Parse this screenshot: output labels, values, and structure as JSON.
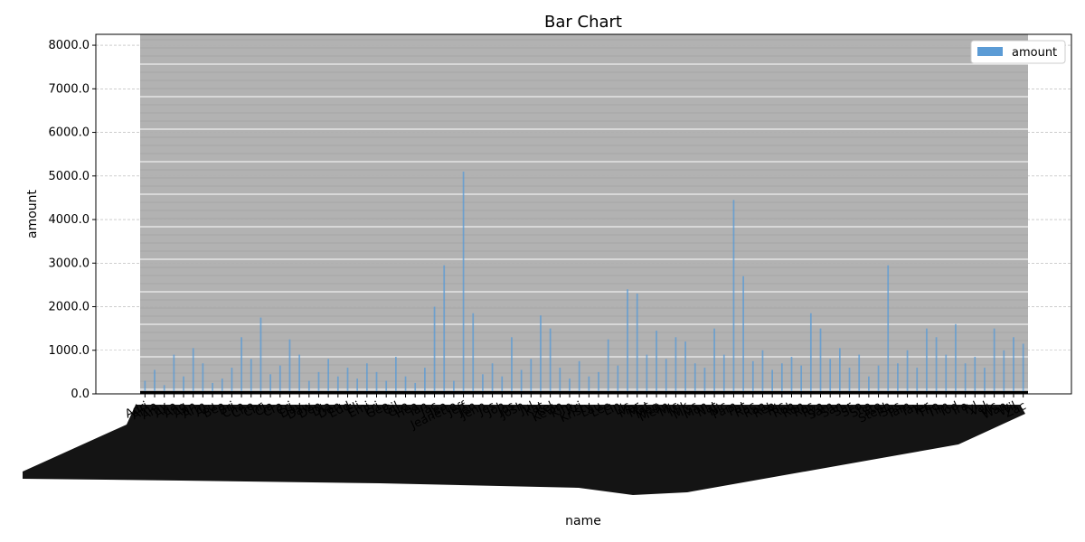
{
  "chart_data": {
    "type": "bar",
    "title": "Bar Chart",
    "xlabel": "name",
    "ylabel": "amount",
    "ylim": [
      0,
      8250
    ],
    "yticks": [
      0,
      1000,
      2000,
      3000,
      4000,
      5000,
      6000,
      7000,
      8000
    ],
    "ytick_labels": [
      "0.0",
      "1000.0",
      "2000.0",
      "3000.0",
      "4000.0",
      "5000.0",
      "6000.0",
      "7000.0",
      "8000.0"
    ],
    "grid": true,
    "legend": {
      "placement": "top-right",
      "entries": [
        "amount"
      ]
    },
    "series": [
      {
        "name": "amount",
        "color": "#5b9bd5"
      }
    ],
    "categories": [
      "Adri",
      "Ama",
      "Amy",
      "Ana",
      "Ang",
      "Ann",
      "Arm",
      "Aru",
      "Bea",
      "Bri",
      "Cha",
      "Che",
      "Chr",
      "Cla",
      "Cra",
      "Cri",
      "Dav",
      "Daw",
      "Den",
      "Dia",
      "Don",
      "Edd",
      "Eli",
      "Emi",
      "Eri",
      "Geo",
      "Gil",
      "Gre",
      "Hea",
      "Ian",
      "Jac",
      "Jea",
      "Jeanette",
      "Jeff",
      "Jen",
      "Jenn",
      "Jes",
      "Joh",
      "Jos",
      "Josh",
      "Jul",
      "Kat",
      "Kel",
      "Kevin",
      "Kim",
      "Kri",
      "Kristy",
      "Lau",
      "Lee",
      "Lin",
      "Lis",
      "Mar",
      "Mat",
      "Meg",
      "Melin",
      "Mic",
      "Mik",
      "Miss",
      "Mon",
      "Nat",
      "Nic",
      "Pam",
      "Pat",
      "Rac",
      "Ran",
      "Reb",
      "Ric",
      "Rob",
      "Ron",
      "Ros",
      "Rya",
      "Sam",
      "San",
      "Sar",
      "Sco",
      "Sha",
      "Ste",
      "Steph",
      "Sus",
      "Tam",
      "Tay",
      "Ter",
      "Tho",
      "Tim",
      "Tod",
      "Tra",
      "Tyl",
      "Val",
      "Vic",
      "Wan",
      "Wil",
      "Zac"
    ],
    "values": [
      300,
      550,
      200,
      900,
      400,
      1050,
      700,
      250,
      350,
      600,
      1300,
      800,
      1750,
      450,
      650,
      1250,
      900,
      300,
      500,
      800,
      400,
      600,
      350,
      700,
      500,
      300,
      850,
      400,
      250,
      600,
      2000,
      2950,
      300,
      5100,
      1850,
      450,
      700,
      400,
      1300,
      550,
      800,
      1800,
      1500,
      600,
      350,
      750,
      400,
      500,
      1250,
      650,
      2400,
      2300,
      900,
      1450,
      800,
      1300,
      1200,
      700,
      600,
      1500,
      900,
      4450,
      2700,
      750,
      1000,
      550,
      700,
      850,
      650,
      1850,
      1500,
      800,
      1050,
      600,
      900,
      400,
      650,
      2950,
      700,
      1000,
      600,
      1500,
      1300,
      900,
      1600,
      700,
      850,
      600,
      1500,
      1000,
      1300,
      1150
    ]
  }
}
